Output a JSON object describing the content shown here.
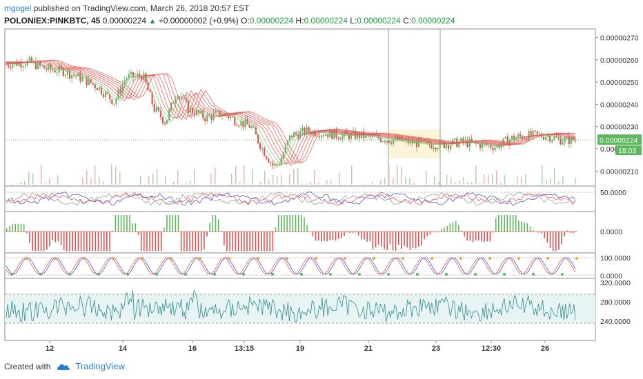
{
  "header": {
    "user": "mgogel",
    "published": " published on TradingView.com, March 26, 2018 20:57 EST"
  },
  "symbol": {
    "name": "POLONIEX:PINKBTC, 45",
    "price": "0.00000224",
    "change": "+0.00000002 (+0.9%)",
    "o_label": "O:",
    "o_value": "0.00000224",
    "h_label": "H:",
    "h_value": "0.00000224",
    "l_label": "L:",
    "l_value": "0.00000224",
    "c_label": "C:",
    "c_value": "0.00000224"
  },
  "footer": {
    "created_with": "Created with",
    "brand": "TradingView"
  },
  "colors": {
    "up": "#5cb85c",
    "down": "#d9534f",
    "ribbon": "#e05a55",
    "blue": "#4d4dcc",
    "teal": "#2e8b8b",
    "accent": "#2a7fd4"
  },
  "chart_data": [
    {
      "type": "candlestick",
      "title": "POLONIEX:PINKBTC, 45",
      "x_ticks": [
        "12",
        "14",
        "16",
        "13:15",
        "19",
        "21",
        "23",
        "12:30",
        "26"
      ],
      "y_ticks": [
        "0.00000270",
        "0.00000260",
        "0.00000250",
        "0.00000240",
        "0.00000230",
        "0.0000022",
        "0.00000210"
      ],
      "ylim": [
        2.07e-06,
        2.72e-06
      ],
      "last_price": "0.00000224",
      "countdown": "18:03",
      "close_trend": [
        [
          0,
          2.58e-06
        ],
        [
          0.04,
          2.59e-06
        ],
        [
          0.07,
          2.56e-06
        ],
        [
          0.1,
          2.55e-06
        ],
        [
          0.13,
          2.52e-06
        ],
        [
          0.16,
          2.48e-06
        ],
        [
          0.19,
          2.41e-06
        ],
        [
          0.21,
          2.52e-06
        ],
        [
          0.24,
          2.53e-06
        ],
        [
          0.26,
          2.38e-06
        ],
        [
          0.28,
          2.32e-06
        ],
        [
          0.3,
          2.46e-06
        ],
        [
          0.32,
          2.38e-06
        ],
        [
          0.35,
          2.34e-06
        ],
        [
          0.38,
          2.36e-06
        ],
        [
          0.41,
          2.32e-06
        ],
        [
          0.43,
          2.3e-06
        ],
        [
          0.45,
          2.2e-06
        ],
        [
          0.47,
          2.12e-06
        ],
        [
          0.48,
          2.14e-06
        ],
        [
          0.5,
          2.26e-06
        ],
        [
          0.53,
          2.28e-06
        ],
        [
          0.56,
          2.27e-06
        ],
        [
          0.59,
          2.26e-06
        ],
        [
          0.62,
          2.26e-06
        ],
        [
          0.65,
          2.25e-06
        ],
        [
          0.68,
          2.24e-06
        ],
        [
          0.71,
          2.23e-06
        ],
        [
          0.74,
          2.22e-06
        ],
        [
          0.77,
          2.22e-06
        ],
        [
          0.8,
          2.23e-06
        ],
        [
          0.83,
          2.22e-06
        ],
        [
          0.86,
          2.21e-06
        ],
        [
          0.89,
          2.25e-06
        ],
        [
          0.92,
          2.26e-06
        ],
        [
          0.95,
          2.26e-06
        ],
        [
          0.975,
          2.24e-06
        ],
        [
          1.0,
          2.24e-06
        ]
      ]
    },
    {
      "type": "line",
      "title": "",
      "y_ticks": [
        "50.0000"
      ],
      "series": [
        {
          "values": [
            0.5,
            0.55,
            0.45,
            0.6,
            0.4,
            0.55,
            0.5,
            0.65,
            0.45,
            0.5,
            0.6,
            0.55
          ]
        }
      ]
    },
    {
      "type": "bar",
      "title": "",
      "y_ticks": [
        "0.0000"
      ]
    },
    {
      "type": "line",
      "title": "",
      "y_ticks": [
        "100.0000",
        "0.0000"
      ]
    },
    {
      "type": "line",
      "title": "",
      "y_ticks": [
        "320.0000",
        "280.0000",
        "240.0000"
      ]
    }
  ]
}
